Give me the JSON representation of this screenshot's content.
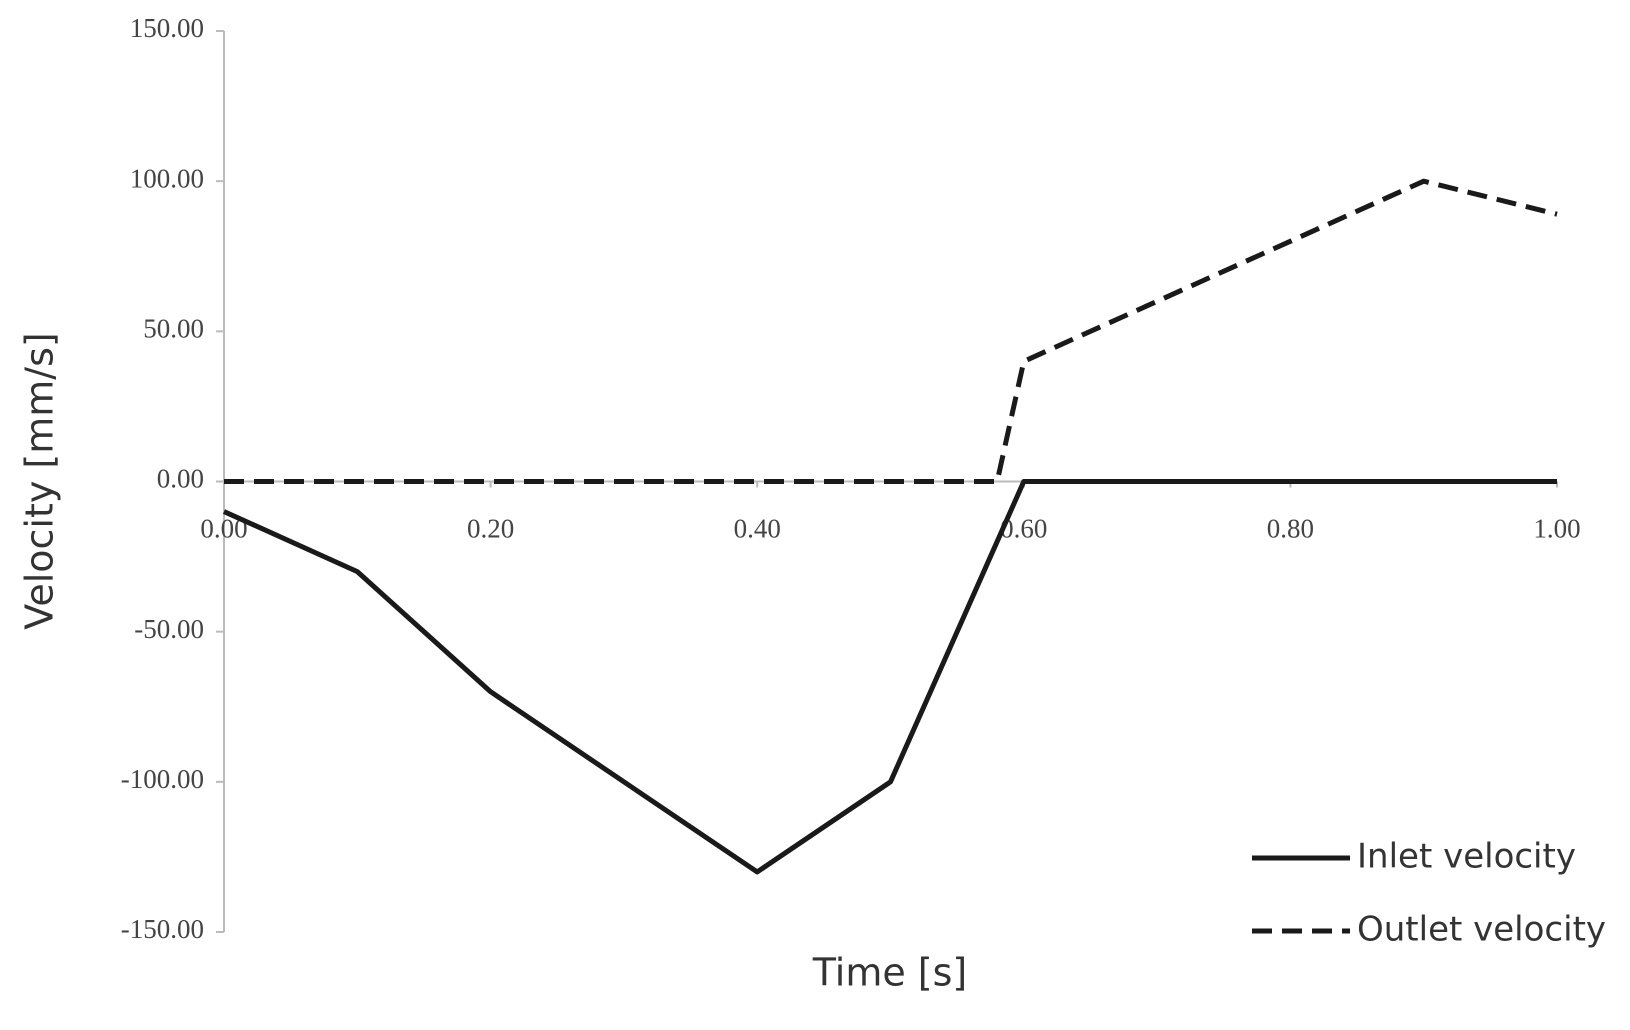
{
  "chart_data": {
    "type": "line",
    "x_label": "Time [s]",
    "y_label": "Velocity [mm/s]",
    "x": [
      0,
      0.1,
      0.2,
      0.4,
      0.5,
      0.58,
      0.6,
      0.9,
      1.0
    ],
    "series": [
      {
        "name": "Inlet velocity",
        "color": "#1a1a1a",
        "dash": "solid",
        "values": [
          -10,
          -30,
          -70,
          -130,
          -100,
          -20,
          0,
          0,
          0
        ]
      },
      {
        "name": "Outlet velocity",
        "color": "#1a1a1a",
        "dash": "dashed",
        "values": [
          0,
          0,
          0,
          0,
          0,
          0,
          40,
          100,
          89
        ]
      }
    ],
    "xlim": [
      0,
      1
    ],
    "xticks": [
      {
        "value": 0,
        "label": "0.00"
      },
      {
        "value": 0.2,
        "label": "0.20"
      },
      {
        "value": 0.4,
        "label": "0.40"
      },
      {
        "value": 0.6,
        "label": "0.60"
      },
      {
        "value": 0.8,
        "label": "0.80"
      },
      {
        "value": 1,
        "label": "1.00"
      }
    ],
    "ylim": [
      -150,
      150
    ],
    "yticks": [
      {
        "value": -150,
        "label": "-150.00"
      },
      {
        "value": -100,
        "label": "-100.00"
      },
      {
        "value": -50,
        "label": "-50.00"
      },
      {
        "value": 0,
        "label": "0.00"
      },
      {
        "value": 50,
        "label": "50.00"
      },
      {
        "value": 100,
        "label": "100.00"
      },
      {
        "value": 150,
        "label": "150.00"
      }
    ],
    "grid": false,
    "legend": "lower right"
  }
}
